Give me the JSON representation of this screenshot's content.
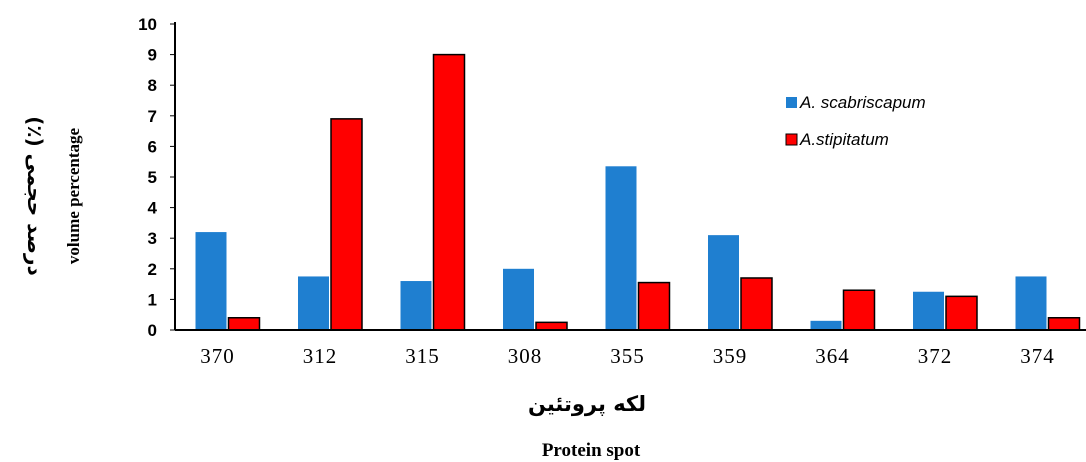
{
  "chart_data": {
    "type": "bar",
    "categories": [
      "370",
      "312",
      "315",
      "308",
      "355",
      "359",
      "364",
      "372",
      "374"
    ],
    "series": [
      {
        "name": "A. scabriscapum",
        "color": "#1f7fd0",
        "values": [
          3.2,
          1.75,
          1.6,
          2.0,
          5.35,
          3.1,
          0.3,
          1.25,
          1.75
        ]
      },
      {
        "name": "A.stipitatum",
        "color": "#ff0000",
        "values": [
          0.4,
          6.9,
          9.0,
          0.25,
          1.55,
          1.7,
          1.3,
          1.1,
          0.4
        ]
      }
    ],
    "ylim": [
      0,
      10
    ],
    "yticks": [
      "0",
      "1",
      "2",
      "3",
      "4",
      "5",
      "6",
      "7",
      "8",
      "9",
      "10"
    ],
    "ylabel_fa": "درصد حجمی (٪)",
    "ylabel_en": "volume percentage",
    "xlabel_fa": "لکه پروتئین",
    "xlabel_en": "Protein spot",
    "grid": false,
    "legend_position": "top-right"
  }
}
